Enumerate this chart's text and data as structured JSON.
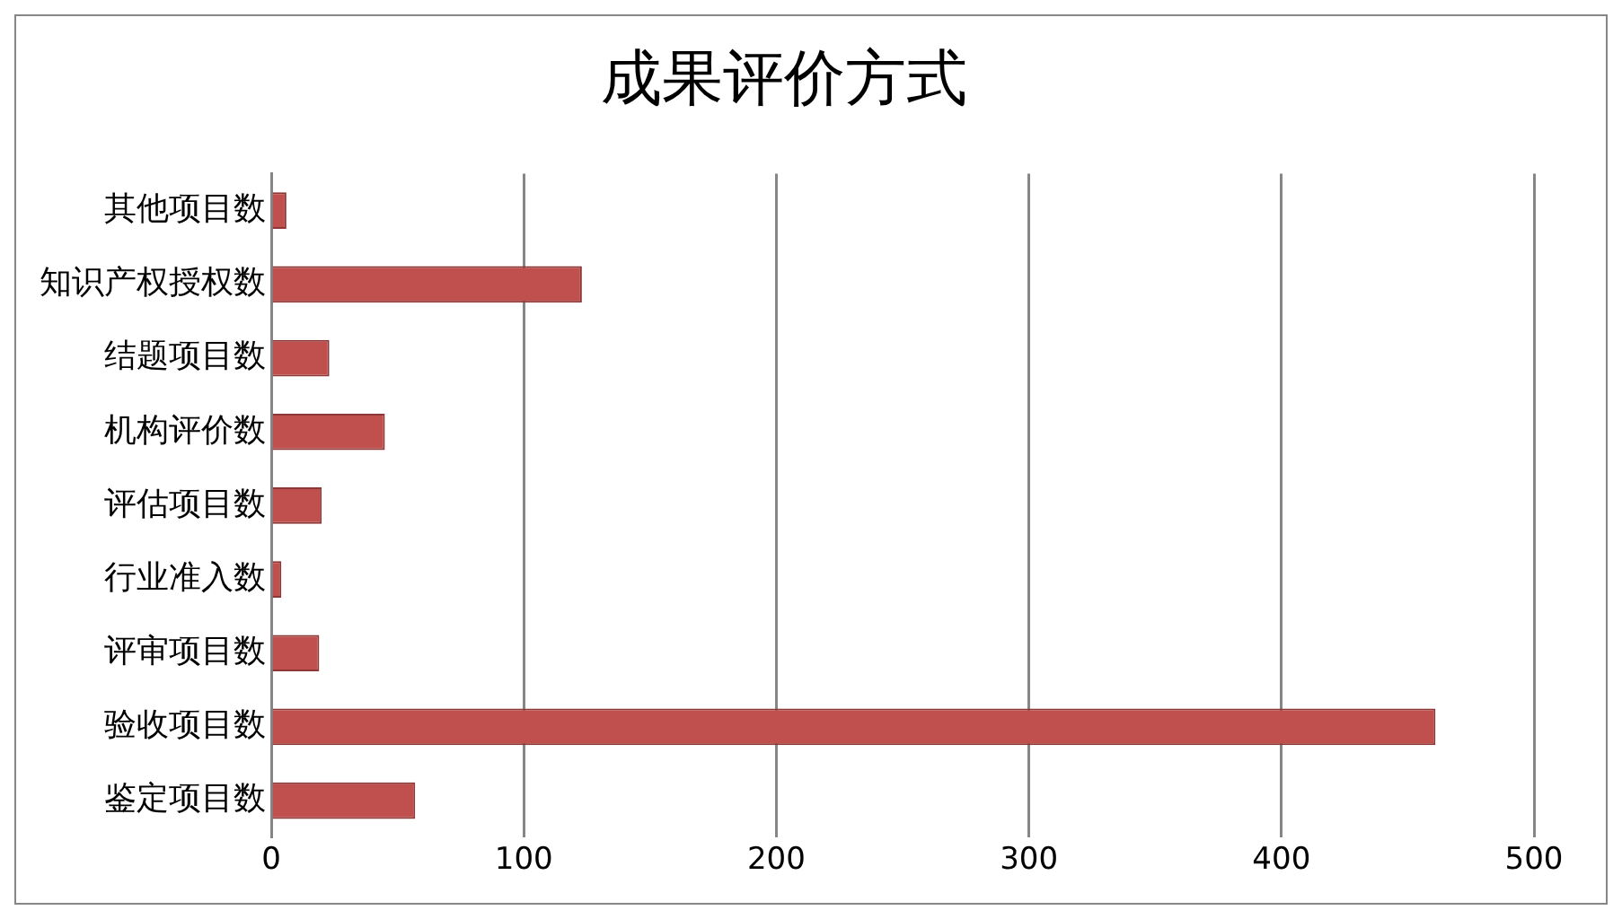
{
  "chart_data": {
    "type": "bar",
    "orientation": "horizontal",
    "title": "成果评价方式",
    "categories": [
      "其他项目数",
      "知识产权授权数",
      "结题项目数",
      "机构评价数",
      "评估项目数",
      "行业准入数",
      "评审项目数",
      "验收项目数",
      "鉴定项目数"
    ],
    "values": [
      6,
      123,
      23,
      45,
      20,
      4,
      19,
      461,
      57
    ],
    "color": "#c0504d",
    "xlim": [
      0,
      500
    ],
    "xticks": [
      0,
      100,
      200,
      300,
      400,
      500
    ],
    "grid": "x",
    "legend": false
  }
}
